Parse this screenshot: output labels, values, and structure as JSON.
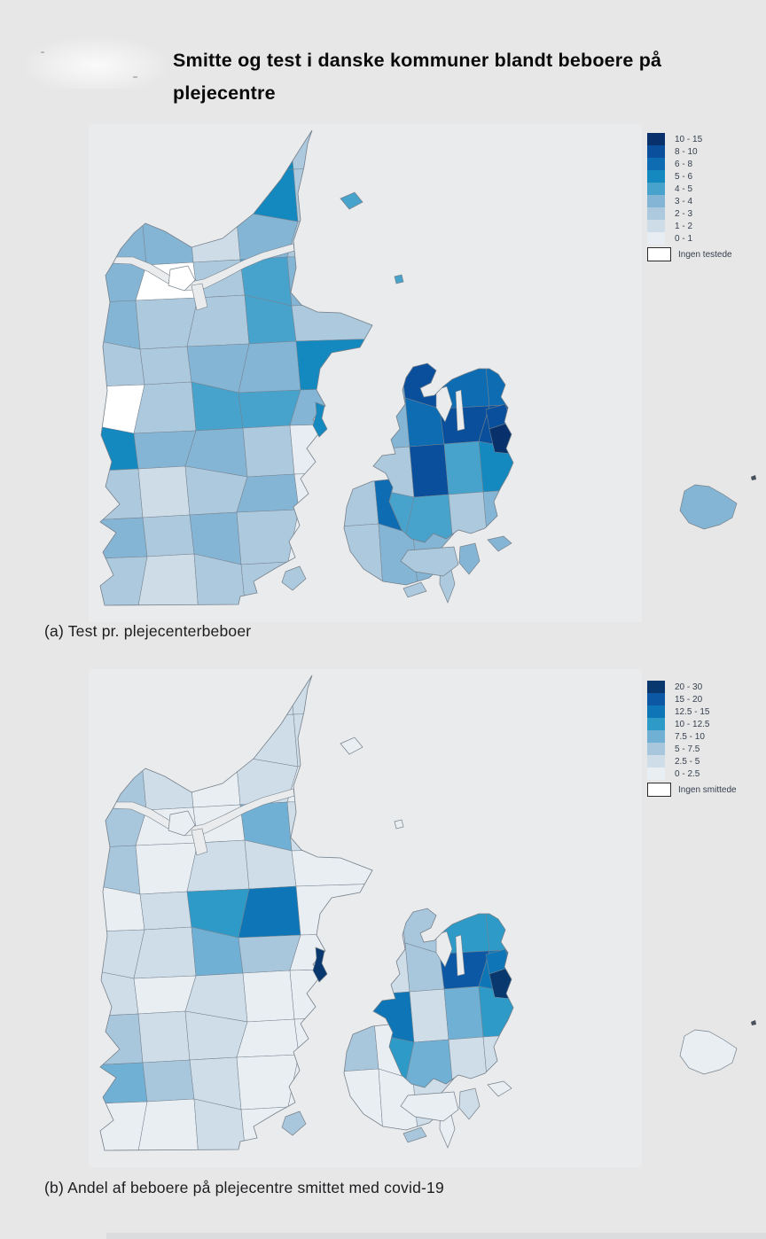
{
  "title": {
    "line1": "Smitte og test i danske kommuner blandt beboere på",
    "line2": "plejecentre"
  },
  "captions": {
    "a": "(a) Test pr. plejecenterbeboer",
    "b": "(b) Andel af beboere på plejecentre smittet med covid-19"
  },
  "colors": {
    "page_bg": "#e7e7e8",
    "panel_bg": "#eaebed",
    "border": "#76838f",
    "outline": "#75808a",
    "none_fill": "#ffffff",
    "legend_text": "#36404e"
  },
  "chart_data": [
    {
      "type": "heatmap",
      "subtype": "choropleth-map",
      "region": "Danish municipalities",
      "title": "Test pr. plejecenterbeboer",
      "legend_position": "top-right",
      "bins": [
        "0 - 1",
        "1 - 2",
        "2 - 3",
        "3 - 4",
        "4 - 5",
        "5 - 6",
        "6 - 8",
        "8 - 10",
        "10 - 15"
      ],
      "no_data_label": "Ingen testede"
    },
    {
      "type": "heatmap",
      "subtype": "choropleth-map",
      "region": "Danish municipalities",
      "title": "Andel af beboere på plejecentre smittet med covid-19",
      "legend_position": "top-right",
      "bins": [
        "0 - 2.5",
        "2.5 - 5",
        "5 - 7.5",
        "7.5 - 10",
        "10 - 12.5",
        "12.5 - 15",
        "15 - 20",
        "20 - 30"
      ],
      "no_data_label": "Ingen smittede"
    }
  ],
  "legend_a": {
    "items": [
      {
        "label": "10 - 15",
        "color": "#08306b"
      },
      {
        "label": "8 - 10",
        "color": "#0a4f9b"
      },
      {
        "label": "6 - 8",
        "color": "#0e6cb2"
      },
      {
        "label": "5 - 6",
        "color": "#1489bf"
      },
      {
        "label": "4 - 5",
        "color": "#47a3cc"
      },
      {
        "label": "3 - 4",
        "color": "#85b5d5"
      },
      {
        "label": "2 - 3",
        "color": "#adc9de"
      },
      {
        "label": "1 - 2",
        "color": "#cedce8"
      },
      {
        "label": "0 - 1",
        "color": "#e7edf2"
      }
    ],
    "none_label": "Ingen testede"
  },
  "legend_b": {
    "items": [
      {
        "label": "20 - 30",
        "color": "#09386e"
      },
      {
        "label": "15 - 20",
        "color": "#0c58a4"
      },
      {
        "label": "12.5 - 15",
        "color": "#0e76b6"
      },
      {
        "label": "10 - 12.5",
        "color": "#2d9ac7"
      },
      {
        "label": "7.5 - 10",
        "color": "#6fb0d4"
      },
      {
        "label": "5 - 7.5",
        "color": "#a8c6dc"
      },
      {
        "label": "2.5 - 5",
        "color": "#cfdde9"
      },
      {
        "label": "0 - 2.5",
        "color": "#e9eef3"
      }
    ],
    "none_label": "Ingen smittede"
  },
  "map_a": {
    "palette": [
      "#e7edf2",
      "#cedce8",
      "#adc9de",
      "#85b5d5",
      "#47a3cc",
      "#1489bf",
      "#0e6cb2",
      "#0a4f9b",
      "#08306b"
    ],
    "jutland": [
      0,
      0,
      5,
      5,
      2,
      0,
      2,
      5,
      5,
      2,
      3,
      3,
      1,
      3,
      2,
      3,
      "w",
      2,
      4,
      3,
      3,
      2,
      2,
      4,
      2,
      2,
      2,
      3,
      3,
      5,
      "w",
      2,
      4,
      4,
      3,
      5,
      3,
      3,
      2,
      0,
      2,
      1,
      2,
      3,
      0,
      3,
      2,
      3,
      2,
      0,
      2,
      1,
      2,
      2,
      0
    ],
    "funen": [
      2,
      6,
      2,
      2,
      3,
      3
    ],
    "zealand": [
      3,
      7,
      6,
      6,
      3,
      6,
      7,
      7,
      2,
      7,
      4,
      5,
      4,
      4,
      2,
      3
    ],
    "overlays": {
      "cph_north": 7,
      "cph": 8,
      "amager": 8
    },
    "islands": {
      "morso": "w",
      "samso": 5,
      "laeso": 4,
      "anholt": 4,
      "bornholm": 3,
      "als": 2,
      "langeland": 2,
      "aero": 2,
      "moen": 3,
      "falster": 3,
      "lolland": 2
    }
  },
  "map_b": {
    "palette": [
      "#e9eef3",
      "#cfdde9",
      "#a8c6dc",
      "#6fb0d4",
      "#2d9ac7",
      "#0e76b6",
      "#0c58a4",
      "#09386e"
    ],
    "jutland": [
      0,
      0,
      1,
      1,
      1,
      0,
      1,
      0,
      1,
      1,
      2,
      1,
      0,
      1,
      0,
      2,
      0,
      0,
      3,
      1,
      2,
      0,
      1,
      1,
      0,
      0,
      1,
      4,
      5,
      0,
      1,
      1,
      3,
      2,
      0,
      1,
      0,
      1,
      0,
      0,
      2,
      1,
      1,
      0,
      0,
      3,
      2,
      1,
      0,
      0,
      0,
      0,
      1,
      0,
      0
    ],
    "funen": [
      2,
      0,
      2,
      0,
      0,
      1
    ],
    "zealand": [
      1,
      2,
      4,
      4,
      1,
      2,
      6,
      5,
      5,
      1,
      3,
      4,
      4,
      3,
      1,
      1
    ],
    "overlays": {
      "cph_north": 5,
      "cph": 7,
      "amager": 7
    },
    "islands": {
      "morso": 0,
      "samso": 7,
      "laeso": 0,
      "anholt": 0,
      "bornholm": 0,
      "als": 2,
      "langeland": 0,
      "aero": 2,
      "moen": 0,
      "falster": 1,
      "lolland": 0
    }
  }
}
